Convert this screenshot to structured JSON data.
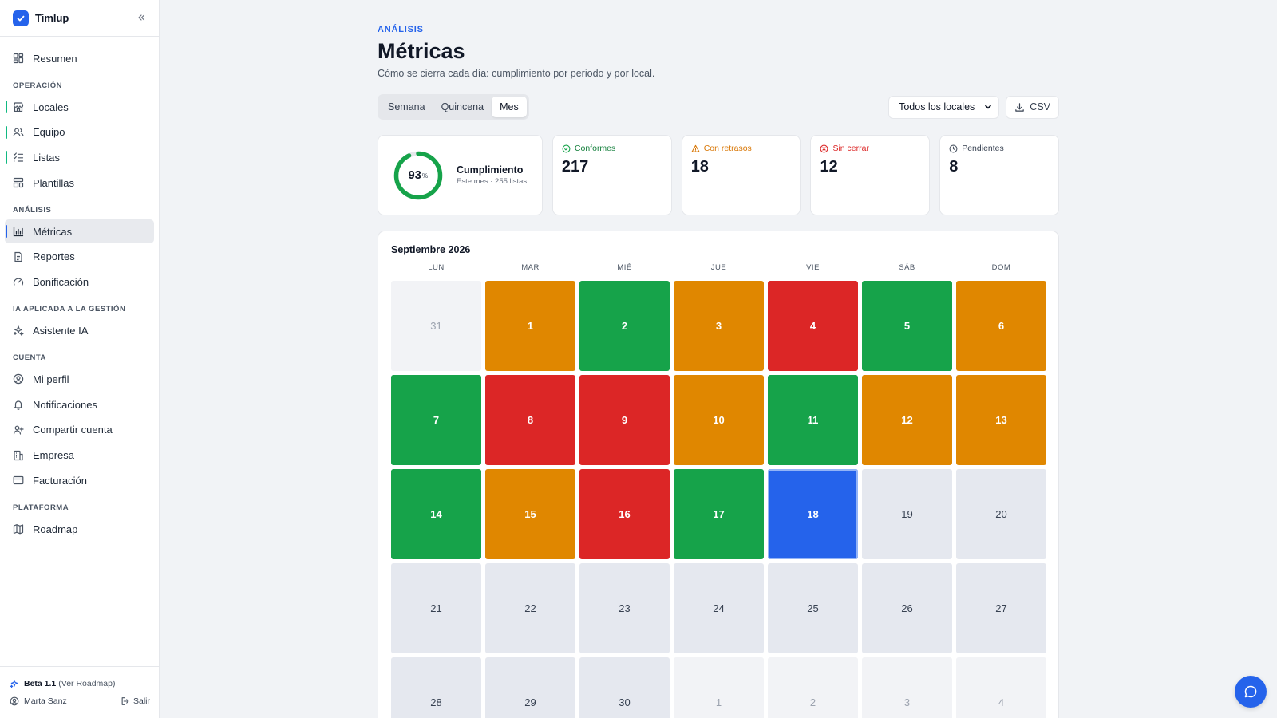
{
  "app": {
    "name": "Timlup"
  },
  "sidebar": {
    "resumen": "Resumen",
    "sections": {
      "operacion": "OPERACIÓN",
      "analisis": "ANÁLISIS",
      "ia": "IA APLICADA A LA GESTIÓN",
      "cuenta": "CUENTA",
      "plataforma": "PLATAFORMA"
    },
    "items": {
      "locales": "Locales",
      "equipo": "Equipo",
      "listas": "Listas",
      "plantillas": "Plantillas",
      "metricas": "Métricas",
      "reportes": "Reportes",
      "bonificacion": "Bonificación",
      "asistente": "Asistente IA",
      "perfil": "Mi perfil",
      "notificaciones": "Notificaciones",
      "compartir": "Compartir cuenta",
      "empresa": "Empresa",
      "facturacion": "Facturación",
      "roadmap": "Roadmap"
    },
    "footer": {
      "beta": "Beta 1.1",
      "roadmap_link": "(Ver Roadmap)",
      "user": "Marta Sanz",
      "logout": "Salir"
    }
  },
  "header": {
    "eyebrow": "ANÁLISIS",
    "title": "Métricas",
    "subtitle": "Cómo se cierra cada día: cumplimiento por periodo y por local."
  },
  "toolbar": {
    "tabs": [
      "Semana",
      "Quincena",
      "Mes"
    ],
    "active_tab": "Mes",
    "locale_select": "Todos los locales",
    "csv_label": "CSV"
  },
  "kpis": {
    "cumplimiento": {
      "value": "93",
      "unit": "%",
      "fraction": 0.93,
      "title": "Cumplimiento",
      "subtitle": "Este mes · 255 listas"
    },
    "conformes": {
      "label": "Conformes",
      "value": "217",
      "color": "#16a34a"
    },
    "retrasos": {
      "label": "Con retrasos",
      "value": "18",
      "color": "#d97706"
    },
    "sin_cerrar": {
      "label": "Sin cerrar",
      "value": "12",
      "color": "#dc2626"
    },
    "pendientes": {
      "label": "Pendientes",
      "value": "8",
      "color": "#374151"
    }
  },
  "calendar": {
    "title": "Septiembre 2026",
    "weekdays": [
      "LUN",
      "MAR",
      "MIÉ",
      "JUE",
      "VIE",
      "SÁB",
      "DOM"
    ],
    "weeks": [
      [
        {
          "d": "31",
          "s": "out"
        },
        {
          "d": "1",
          "s": "late"
        },
        {
          "d": "2",
          "s": "ok"
        },
        {
          "d": "3",
          "s": "late"
        },
        {
          "d": "4",
          "s": "open"
        },
        {
          "d": "5",
          "s": "ok"
        },
        {
          "d": "6",
          "s": "late"
        }
      ],
      [
        {
          "d": "7",
          "s": "ok"
        },
        {
          "d": "8",
          "s": "open"
        },
        {
          "d": "9",
          "s": "open"
        },
        {
          "d": "10",
          "s": "late"
        },
        {
          "d": "11",
          "s": "ok"
        },
        {
          "d": "12",
          "s": "late"
        },
        {
          "d": "13",
          "s": "late"
        }
      ],
      [
        {
          "d": "14",
          "s": "ok"
        },
        {
          "d": "15",
          "s": "late"
        },
        {
          "d": "16",
          "s": "open"
        },
        {
          "d": "17",
          "s": "ok"
        },
        {
          "d": "18",
          "s": "today"
        },
        {
          "d": "19",
          "s": "future"
        },
        {
          "d": "20",
          "s": "future"
        }
      ],
      [
        {
          "d": "21",
          "s": "future"
        },
        {
          "d": "22",
          "s": "future"
        },
        {
          "d": "23",
          "s": "future"
        },
        {
          "d": "24",
          "s": "future"
        },
        {
          "d": "25",
          "s": "future"
        },
        {
          "d": "26",
          "s": "future"
        },
        {
          "d": "27",
          "s": "future"
        }
      ],
      [
        {
          "d": "28",
          "s": "future"
        },
        {
          "d": "29",
          "s": "future"
        },
        {
          "d": "30",
          "s": "future"
        },
        {
          "d": "1",
          "s": "out"
        },
        {
          "d": "2",
          "s": "out"
        },
        {
          "d": "3",
          "s": "out"
        },
        {
          "d": "4",
          "s": "out"
        }
      ]
    ]
  }
}
